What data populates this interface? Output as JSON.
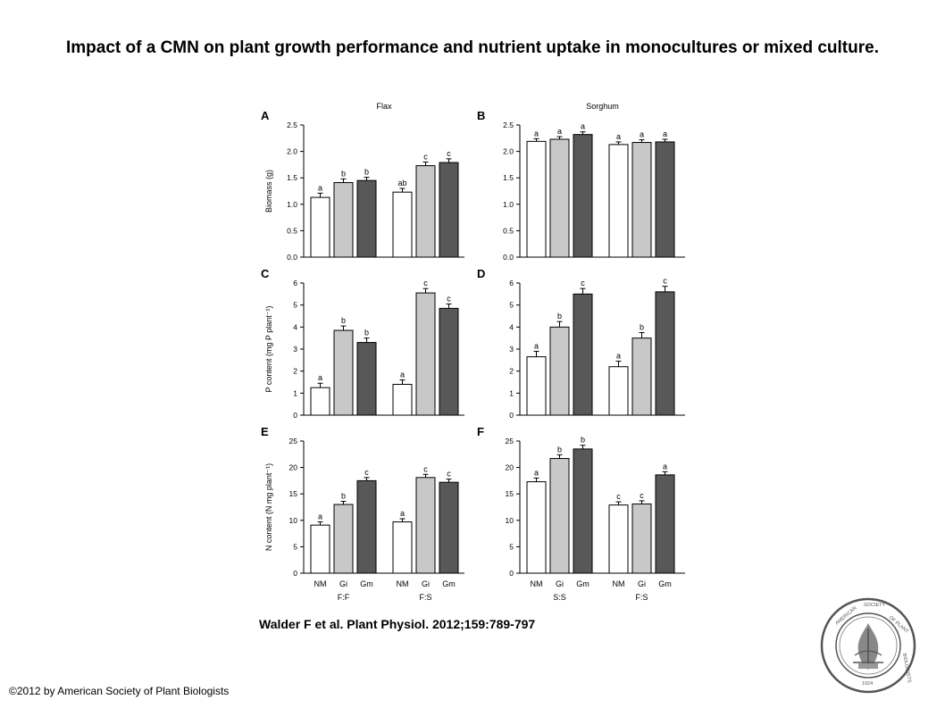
{
  "slide": {
    "title": "Impact of a CMN on plant growth performance and nutrient uptake in monocultures or mixed culture.",
    "citation": "Walder F et al. Plant Physiol. 2012;159:789-797",
    "copyright": "©2012 by American Society of Plant Biologists",
    "logo_text": "AMERICAN SOCIETY OF PLANT BIOLOGISTS 1924"
  },
  "colors": {
    "NM": "#ffffff",
    "Gi": "#c8c8c8",
    "Gm": "#585858"
  },
  "chart_data": [
    {
      "panel": "A",
      "type": "bar",
      "column_title": "Flax",
      "ylabel": "Biomass (g)",
      "ylim": [
        0,
        2.5
      ],
      "yticks": [
        "0.0",
        "0.5",
        "1.0",
        "1.5",
        "2.0",
        "2.5"
      ],
      "categories": [
        "NM",
        "Gi",
        "Gm"
      ],
      "groups": [
        {
          "name": "F:F",
          "values": [
            1.13,
            1.41,
            1.45
          ],
          "errors": [
            0.08,
            0.07,
            0.06
          ],
          "letters": [
            "a",
            "b",
            "b"
          ]
        },
        {
          "name": "F:S",
          "values": [
            1.23,
            1.73,
            1.79
          ],
          "errors": [
            0.07,
            0.07,
            0.07
          ],
          "letters": [
            "ab",
            "c",
            "c"
          ]
        }
      ]
    },
    {
      "panel": "B",
      "type": "bar",
      "column_title": "Sorghum",
      "ylabel": "",
      "ylim": [
        0,
        2.5
      ],
      "yticks": [
        "0.0",
        "0.5",
        "1.0",
        "1.5",
        "2.0",
        "2.5"
      ],
      "categories": [
        "NM",
        "Gi",
        "Gm"
      ],
      "groups": [
        {
          "name": "S:S",
          "values": [
            2.19,
            2.23,
            2.32
          ],
          "errors": [
            0.05,
            0.05,
            0.05
          ],
          "letters": [
            "a",
            "a",
            "a"
          ]
        },
        {
          "name": "F:S",
          "values": [
            2.13,
            2.17,
            2.18
          ],
          "errors": [
            0.05,
            0.05,
            0.05
          ],
          "letters": [
            "a",
            "a",
            "a"
          ]
        }
      ]
    },
    {
      "panel": "C",
      "type": "bar",
      "column_title": "",
      "ylabel": "P content (mg P plant⁻¹)",
      "ylim": [
        0,
        6
      ],
      "yticks": [
        "0",
        "1",
        "2",
        "3",
        "4",
        "5",
        "6"
      ],
      "categories": [
        "NM",
        "Gi",
        "Gm"
      ],
      "groups": [
        {
          "name": "F:F",
          "values": [
            1.25,
            3.85,
            3.3
          ],
          "errors": [
            0.2,
            0.2,
            0.2
          ],
          "letters": [
            "a",
            "b",
            "b"
          ]
        },
        {
          "name": "F:S",
          "values": [
            1.4,
            5.55,
            4.85
          ],
          "errors": [
            0.2,
            0.2,
            0.2
          ],
          "letters": [
            "a",
            "c",
            "c"
          ]
        }
      ]
    },
    {
      "panel": "D",
      "type": "bar",
      "column_title": "",
      "ylabel": "",
      "ylim": [
        0,
        6
      ],
      "yticks": [
        "0",
        "1",
        "2",
        "3",
        "4",
        "5",
        "6"
      ],
      "categories": [
        "NM",
        "Gi",
        "Gm"
      ],
      "groups": [
        {
          "name": "S:S",
          "values": [
            2.65,
            4.0,
            5.5
          ],
          "errors": [
            0.25,
            0.25,
            0.25
          ],
          "letters": [
            "a",
            "b",
            "c"
          ]
        },
        {
          "name": "F:S",
          "values": [
            2.2,
            3.5,
            5.6
          ],
          "errors": [
            0.25,
            0.25,
            0.25
          ],
          "letters": [
            "a",
            "b",
            "c"
          ]
        }
      ]
    },
    {
      "panel": "E",
      "type": "bar",
      "column_title": "",
      "ylabel": "N content (N mg plant⁻¹)",
      "ylim": [
        0,
        25
      ],
      "yticks": [
        "0",
        "5",
        "10",
        "15",
        "20",
        "25"
      ],
      "categories": [
        "NM",
        "Gi",
        "Gm"
      ],
      "groups": [
        {
          "name": "F:F",
          "values": [
            9.1,
            13.0,
            17.5
          ],
          "errors": [
            0.6,
            0.6,
            0.6
          ],
          "letters": [
            "a",
            "b",
            "c"
          ]
        },
        {
          "name": "F:S",
          "values": [
            9.7,
            18.1,
            17.2
          ],
          "errors": [
            0.6,
            0.6,
            0.6
          ],
          "letters": [
            "a",
            "c",
            "c"
          ]
        }
      ]
    },
    {
      "panel": "F",
      "type": "bar",
      "column_title": "",
      "ylabel": "",
      "ylim": [
        0,
        25
      ],
      "yticks": [
        "0",
        "5",
        "10",
        "15",
        "20",
        "25"
      ],
      "categories": [
        "NM",
        "Gi",
        "Gm"
      ],
      "groups": [
        {
          "name": "S:S",
          "values": [
            17.3,
            21.7,
            23.5
          ],
          "errors": [
            0.7,
            0.7,
            0.7
          ],
          "letters": [
            "a",
            "b",
            "b"
          ]
        },
        {
          "name": "F:S",
          "values": [
            12.9,
            13.1,
            18.6
          ],
          "errors": [
            0.6,
            0.6,
            0.6
          ],
          "letters": [
            "c",
            "c",
            "a"
          ]
        }
      ]
    }
  ]
}
